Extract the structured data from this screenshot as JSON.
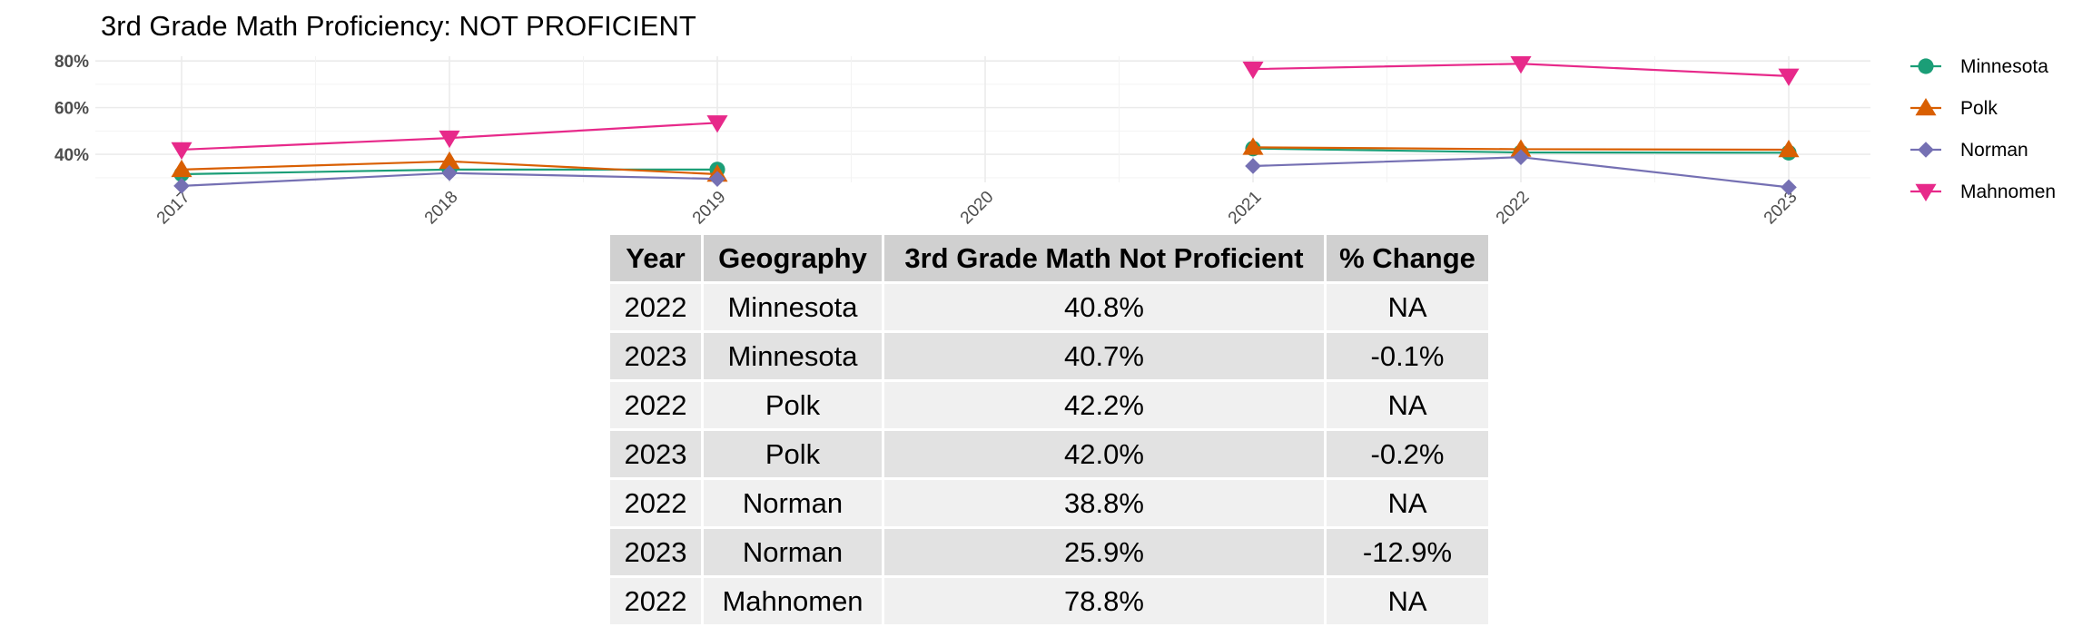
{
  "chart_data": {
    "type": "line",
    "title": "3rd Grade Math Proficiency: NOT PROFICIENT",
    "xlabel": "",
    "ylabel": "",
    "x": [
      "2017",
      "2018",
      "2019",
      "2020",
      "2021",
      "2022",
      "2023"
    ],
    "y_ticks": [
      "40%",
      "60%",
      "80%"
    ],
    "ylim": [
      28,
      82
    ],
    "grid": true,
    "legend_position": "right",
    "series": [
      {
        "name": "Minnesota",
        "color": "#1b9e77",
        "marker": "circle",
        "values": [
          31.5,
          33.5,
          33.5,
          null,
          42.5,
          40.8,
          40.7
        ]
      },
      {
        "name": "Polk",
        "color": "#d95f02",
        "marker": "triangle-up",
        "values": [
          33.5,
          37.0,
          31.5,
          null,
          43.0,
          42.2,
          42.0
        ]
      },
      {
        "name": "Norman",
        "color": "#7570b3",
        "marker": "diamond",
        "values": [
          26.5,
          32.0,
          29.5,
          null,
          35.0,
          38.8,
          25.9
        ]
      },
      {
        "name": "Mahnomen",
        "color": "#e7298a",
        "marker": "triangle-down",
        "values": [
          42.0,
          47.0,
          53.5,
          null,
          76.5,
          78.8,
          73.5
        ]
      }
    ]
  },
  "table": {
    "headers": [
      "Year",
      "Geography",
      "3rd Grade Math Not Proficient",
      "% Change"
    ],
    "rows": [
      [
        "2022",
        "Minnesota",
        "40.8%",
        "NA"
      ],
      [
        "2023",
        "Minnesota",
        "40.7%",
        "-0.1%"
      ],
      [
        "2022",
        "Polk",
        "42.2%",
        "NA"
      ],
      [
        "2023",
        "Polk",
        "42.0%",
        "-0.2%"
      ],
      [
        "2022",
        "Norman",
        "38.8%",
        "NA"
      ],
      [
        "2023",
        "Norman",
        "25.9%",
        "-12.9%"
      ],
      [
        "2022",
        "Mahnomen",
        "78.8%",
        "NA"
      ]
    ]
  }
}
